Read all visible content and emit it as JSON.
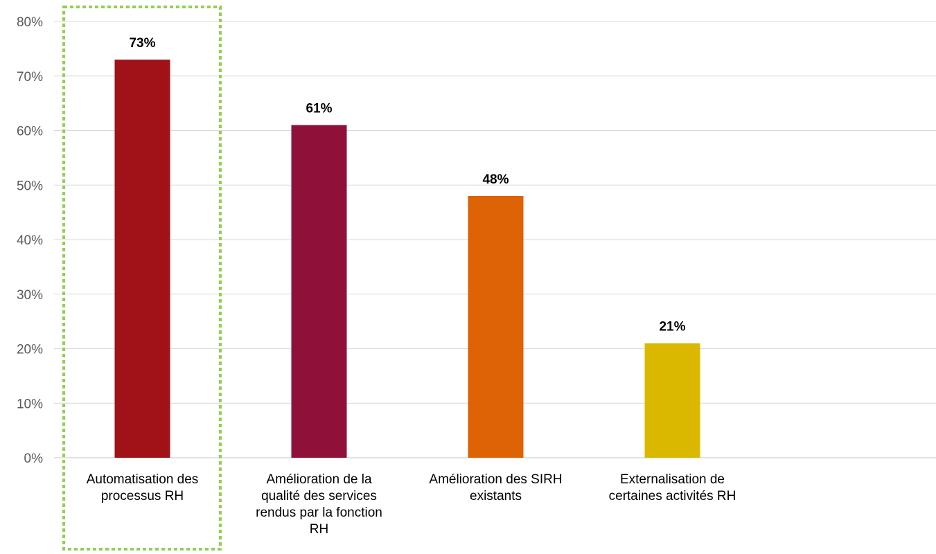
{
  "chart_data": {
    "type": "bar",
    "categories": [
      [
        "Automatisation des",
        "processus RH"
      ],
      [
        "Amélioration de la",
        "qualité des services",
        "rendus par la fonction",
        "RH"
      ],
      [
        "Amélioration des SIRH",
        "existants"
      ],
      [
        "Externalisation de",
        "certaines activités RH"
      ]
    ],
    "values": [
      73,
      61,
      48,
      21
    ],
    "value_labels": [
      "73%",
      "61%",
      "48%",
      "21%"
    ],
    "bar_colors": [
      "#a11118",
      "#8f1038",
      "#dd6305",
      "#dbb800"
    ],
    "ylim": [
      0,
      80
    ],
    "yticks": [
      0,
      10,
      20,
      30,
      40,
      50,
      60,
      70,
      80
    ],
    "ytick_labels": [
      "0%",
      "10%",
      "20%",
      "30%",
      "40%",
      "50%",
      "60%",
      "70%",
      "80%"
    ],
    "grid": true,
    "highlight_category_index": 0,
    "highlight_color": "#92d050",
    "title": "",
    "xlabel": "",
    "ylabel": ""
  }
}
